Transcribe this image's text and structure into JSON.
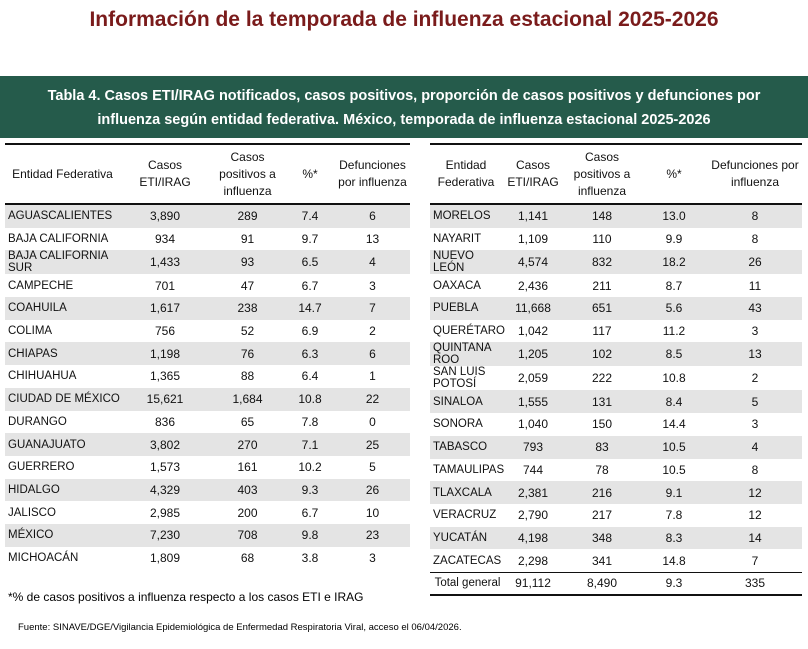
{
  "title": "Información de la temporada de influenza estacional 2025-2026",
  "table_caption": [
    "Tabla 4. Casos ETI/IRAG notificados, casos positivos, proporción de casos positivos  y defunciones por",
    "influenza según entidad federativa. México, temporada de influenza estacional 2025-2026"
  ],
  "left_table": {
    "headers": [
      "Entidad Federativa",
      "Casos ETI/IRAG",
      "Casos positivos a influenza",
      "%*",
      "Defunciones por influenza"
    ],
    "rows": [
      [
        "AGUASCALIENTES",
        "3,890",
        "289",
        "7.4",
        "6"
      ],
      [
        "BAJA CALIFORNIA",
        "934",
        "91",
        "9.7",
        "13"
      ],
      [
        "BAJA CALIFORNIA SUR",
        "1,433",
        "93",
        "6.5",
        "4"
      ],
      [
        "CAMPECHE",
        "701",
        "47",
        "6.7",
        "3"
      ],
      [
        "COAHUILA",
        "1,617",
        "238",
        "14.7",
        "7"
      ],
      [
        "COLIMA",
        "756",
        "52",
        "6.9",
        "2"
      ],
      [
        "CHIAPAS",
        "1,198",
        "76",
        "6.3",
        "6"
      ],
      [
        "CHIHUAHUA",
        "1,365",
        "88",
        "6.4",
        "1"
      ],
      [
        "CIUDAD DE MÉXICO",
        "15,621",
        "1,684",
        "10.8",
        "22"
      ],
      [
        "DURANGO",
        "836",
        "65",
        "7.8",
        "0"
      ],
      [
        "GUANAJUATO",
        "3,802",
        "270",
        "7.1",
        "25"
      ],
      [
        "GUERRERO",
        "1,573",
        "161",
        "10.2",
        "5"
      ],
      [
        "HIDALGO",
        "4,329",
        "403",
        "9.3",
        "26"
      ],
      [
        "JALISCO",
        "2,985",
        "200",
        "6.7",
        "10"
      ],
      [
        "MÉXICO",
        "7,230",
        "708",
        "9.8",
        "23"
      ],
      [
        "MICHOACÁN",
        "1,809",
        "68",
        "3.8",
        "3"
      ]
    ]
  },
  "right_table": {
    "headers": [
      "Entidad Federativa",
      "Casos ETI/IRAG",
      "Casos positivos a influenza",
      "%*",
      "Defunciones por influenza"
    ],
    "rows": [
      [
        "MORELOS",
        "1,141",
        "148",
        "13.0",
        "8"
      ],
      [
        "NAYARIT",
        "1,109",
        "110",
        "9.9",
        "8"
      ],
      [
        "NUEVO LEÓN",
        "4,574",
        "832",
        "18.2",
        "26"
      ],
      [
        "OAXACA",
        "2,436",
        "211",
        "8.7",
        "11"
      ],
      [
        "PUEBLA",
        "11,668",
        "651",
        "5.6",
        "43"
      ],
      [
        "QUERÉTARO",
        "1,042",
        "117",
        "11.2",
        "3"
      ],
      [
        "QUINTANA ROO",
        "1,205",
        "102",
        "8.5",
        "13"
      ],
      [
        "SAN LUIS POTOSÍ",
        "2,059",
        "222",
        "10.8",
        "2"
      ],
      [
        "SINALOA",
        "1,555",
        "131",
        "8.4",
        "5"
      ],
      [
        "SONORA",
        "1,040",
        "150",
        "14.4",
        "3"
      ],
      [
        "TABASCO",
        "793",
        "83",
        "10.5",
        "4"
      ],
      [
        "TAMAULIPAS",
        "744",
        "78",
        "10.5",
        "8"
      ],
      [
        "TLAXCALA",
        "2,381",
        "216",
        "9.1",
        "12"
      ],
      [
        "VERACRUZ",
        "2,790",
        "217",
        "7.8",
        "12"
      ],
      [
        "YUCATÁN",
        "4,198",
        "348",
        "8.3",
        "14"
      ],
      [
        "ZACATECAS",
        "2,298",
        "341",
        "14.8",
        "7"
      ]
    ],
    "total": [
      "Total general",
      "91,112",
      "8,490",
      "9.3",
      "335"
    ]
  },
  "footnote": "*% de casos positivos a influenza respecto a los casos ETI e IRAG",
  "source": "Fuente: SINAVE/DGE/Vigilancia Epidemiológica de Enfermedad Respiratoria Viral, acceso el 06/04/2026."
}
